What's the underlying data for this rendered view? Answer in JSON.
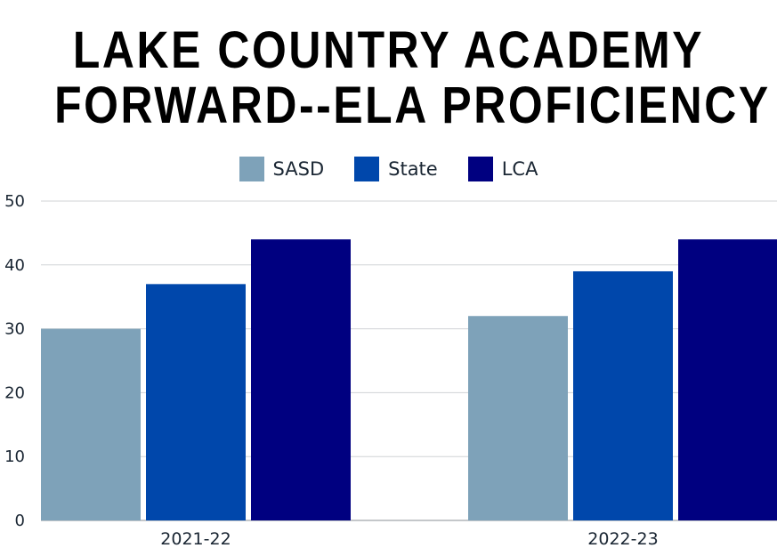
{
  "chart_data": {
    "type": "bar",
    "title": [
      "LAKE COUNTRY ACADEMY",
      "FORWARD--ELA PROFICIENCY"
    ],
    "categories": [
      "2021-22",
      "2022-23"
    ],
    "series": [
      {
        "name": "SASD",
        "color": "#7ea2b9",
        "values": [
          30,
          32
        ]
      },
      {
        "name": "State",
        "color": "#0047ab",
        "values": [
          37,
          39
        ]
      },
      {
        "name": "LCA",
        "color": "#000080",
        "values": [
          44,
          44
        ]
      }
    ],
    "ylim": [
      0,
      50
    ],
    "yticks": [
      "0",
      "10",
      "20",
      "30",
      "40",
      "50"
    ],
    "grid": true,
    "legend_position": "top"
  }
}
